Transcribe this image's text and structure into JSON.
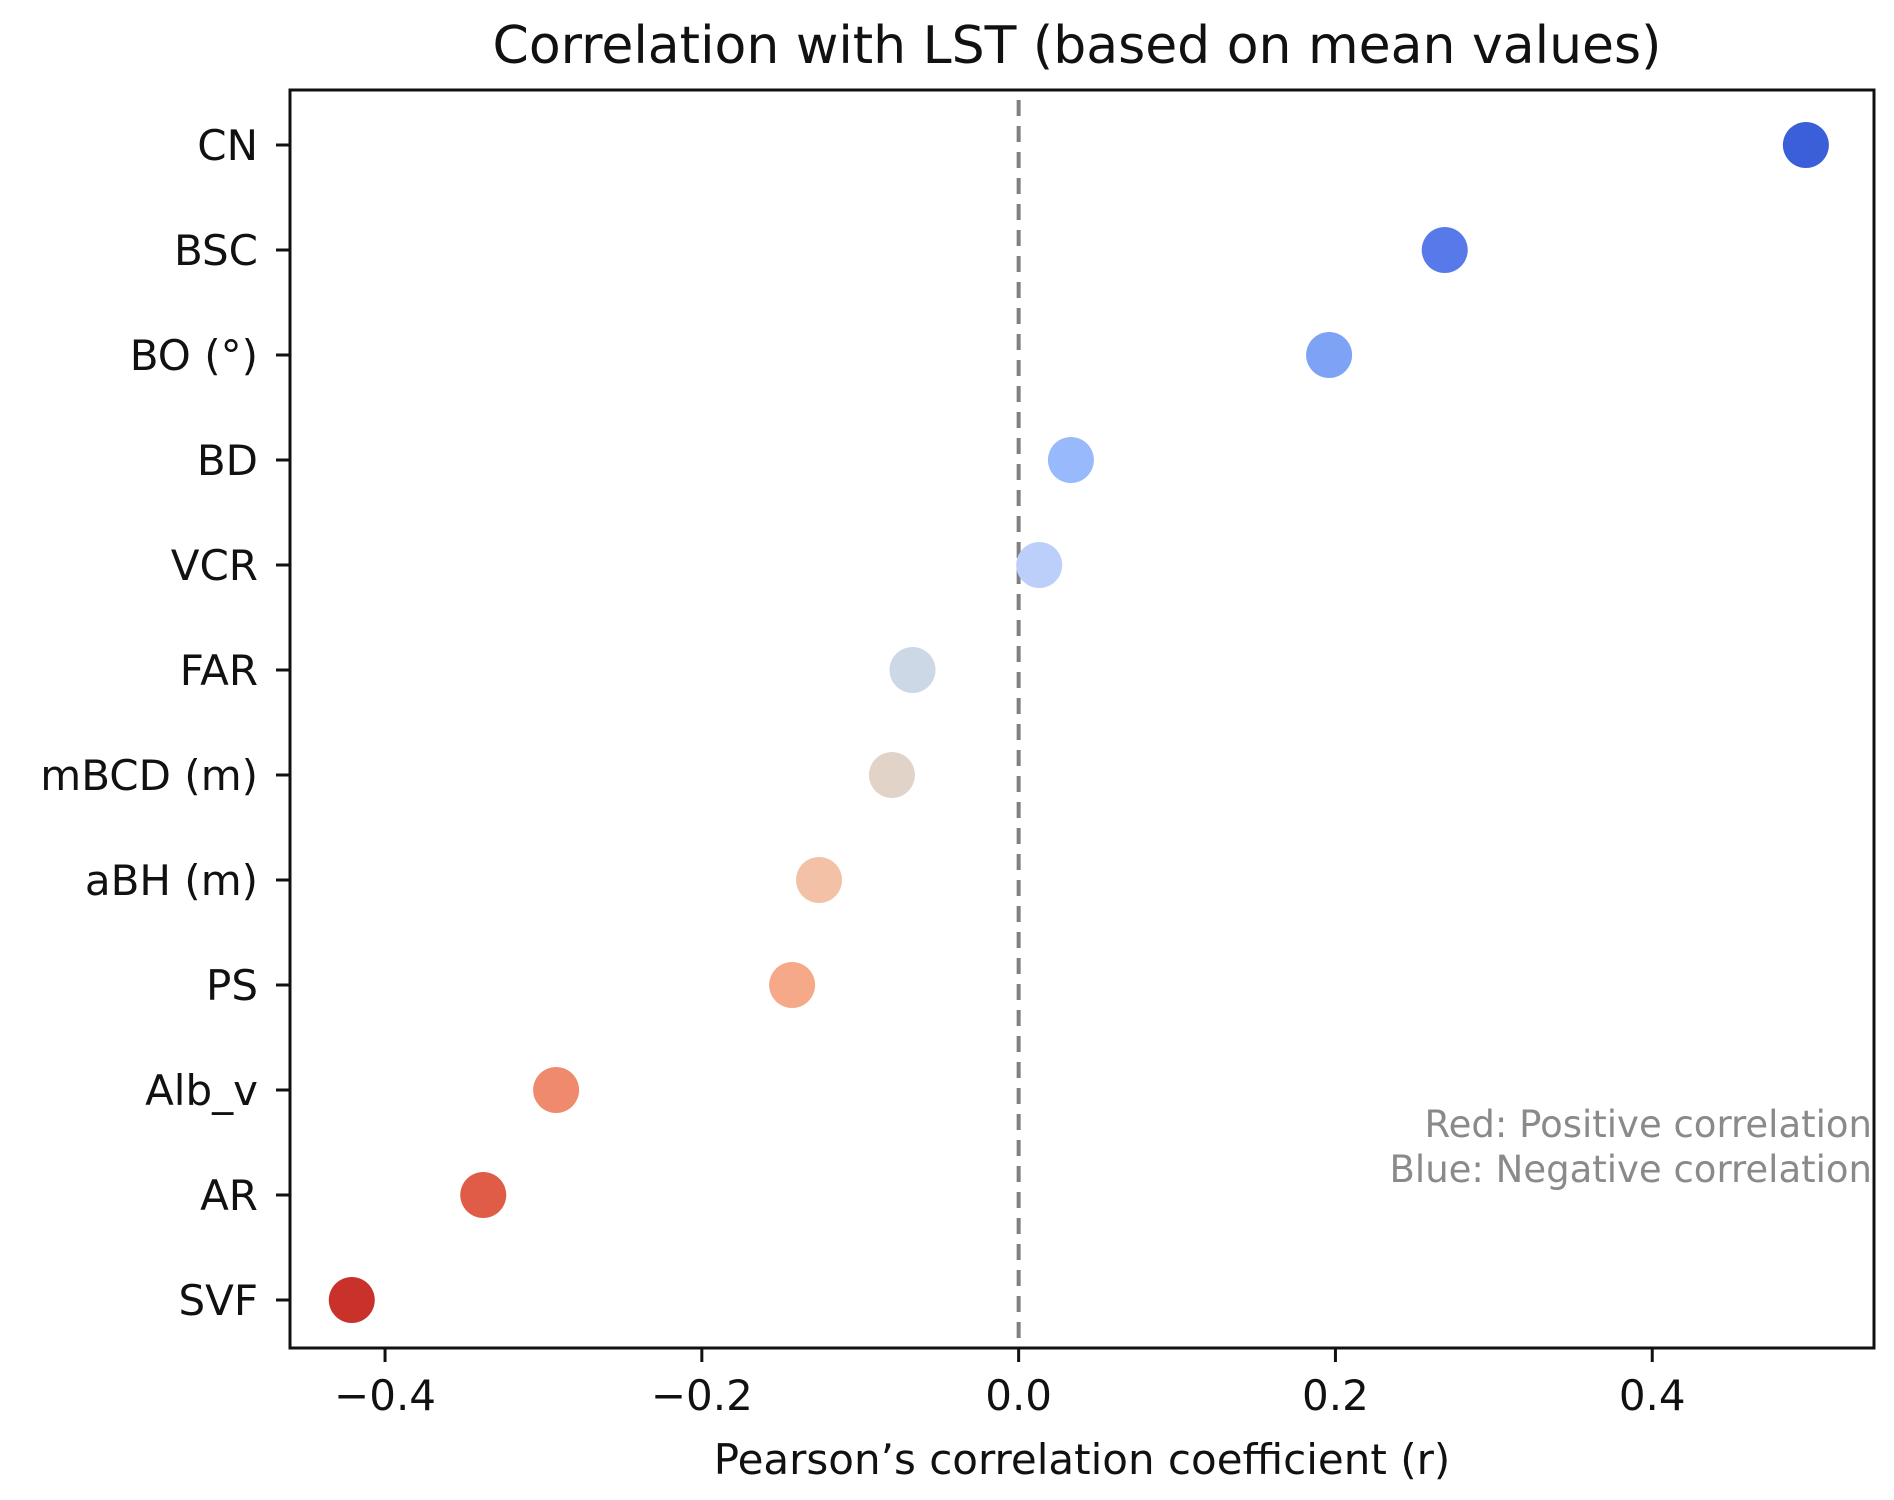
{
  "chart_data": {
    "type": "scatter",
    "title": "Correlation with LST (based on mean values)",
    "xlabel": "Pearson’s correlation coefficient (r)",
    "ylabel": "",
    "xlim": [
      -0.46,
      0.54
    ],
    "xticks": [
      -0.4,
      -0.2,
      0.0,
      0.2,
      0.4
    ],
    "xtick_labels": [
      "−0.4",
      "−0.2",
      "0.0",
      "0.2",
      "0.4"
    ],
    "grid": false,
    "reference_line": {
      "x": 0.0,
      "style": "dashed",
      "color": "#808080"
    },
    "categories": [
      "CN",
      "BSC",
      "BO (°)",
      "BD",
      "VCR",
      "FAR",
      "mBCD (m)",
      "aBH (m)",
      "PS",
      "Alb_v",
      "AR",
      "SVF"
    ],
    "values": [
      0.497,
      0.269,
      0.196,
      0.033,
      0.013,
      -0.067,
      -0.08,
      -0.126,
      -0.143,
      -0.292,
      -0.338,
      -0.421
    ],
    "colors": [
      "#3b5fd9",
      "#5779ea",
      "#7ea2f5",
      "#98b9fb",
      "#bccffa",
      "#cdd8e6",
      "#e2d3c9",
      "#f3c2a6",
      "#f5a989",
      "#ef8b6c",
      "#df5d47",
      "#c8322b"
    ],
    "annotations": [
      "Red: Positive correlation",
      "Blue: Negative correlation"
    ]
  }
}
